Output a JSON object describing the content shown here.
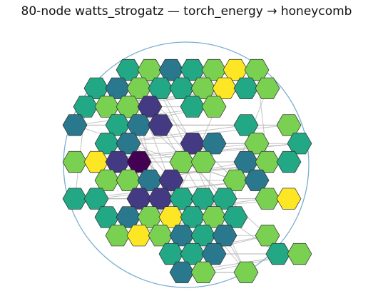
{
  "title": "80-node watts_strogatz — torch_energy → honeycomb",
  "colors": {
    "boundary": "#78aed0",
    "edge": "#b0b0b0",
    "hex_stroke": "#2b2b2b",
    "c0": "#440154",
    "c1": "#443a83",
    "c2": "#2a788e",
    "c3": "#22a884",
    "c4": "#7ad151",
    "c5": "#fde725"
  },
  "honeycomb": {
    "rows": [
      {
        "r": 0,
        "cells": [
          [
            0,
            3
          ],
          [
            1,
            4
          ],
          [
            2,
            2
          ],
          [
            3,
            3
          ],
          [
            4,
            4
          ],
          [
            5,
            5
          ],
          [
            6,
            4
          ]
        ]
      },
      {
        "r": 1,
        "cells": [
          [
            0,
            3
          ],
          [
            1,
            2
          ],
          [
            2,
            4
          ],
          [
            3,
            3
          ],
          [
            4,
            3
          ],
          [
            5,
            4
          ],
          [
            6,
            5
          ],
          [
            7,
            3
          ],
          [
            8,
            4
          ]
        ]
      },
      {
        "r": 2,
        "cells": [
          [
            0,
            3
          ],
          [
            1,
            4
          ],
          [
            2,
            4
          ],
          [
            3,
            1
          ],
          [
            5,
            3
          ],
          [
            6,
            4
          ]
        ]
      },
      {
        "r": 3,
        "cells": [
          [
            0,
            2
          ],
          [
            2,
            3
          ],
          [
            3,
            2
          ],
          [
            4,
            1
          ],
          [
            8,
            3
          ],
          [
            10,
            4
          ]
        ]
      },
      {
        "r": 4,
        "cells": [
          [
            1,
            3
          ],
          [
            2,
            2
          ],
          [
            5,
            1
          ],
          [
            6,
            2
          ],
          [
            8,
            4
          ],
          [
            10,
            3
          ]
        ]
      },
      {
        "r": 5,
        "cells": [
          [
            0,
            4
          ],
          [
            1,
            5
          ],
          [
            2,
            1
          ],
          [
            3,
            0
          ],
          [
            5,
            4
          ],
          [
            6,
            4
          ],
          [
            8,
            2
          ],
          [
            9,
            4
          ],
          [
            10,
            3
          ]
        ]
      },
      {
        "r": 6,
        "cells": [
          [
            1,
            4
          ],
          [
            2,
            4
          ],
          [
            3,
            2
          ],
          [
            4,
            1
          ],
          [
            7,
            4
          ],
          [
            8,
            2
          ]
        ]
      },
      {
        "r": 7,
        "cells": [
          [
            0,
            3
          ],
          [
            1,
            3
          ],
          [
            3,
            1
          ],
          [
            4,
            1
          ],
          [
            5,
            3
          ],
          [
            6,
            3
          ],
          [
            7,
            3
          ],
          [
            9,
            4
          ],
          [
            10,
            5
          ]
        ]
      },
      {
        "r": 8,
        "cells": [
          [
            1,
            3
          ],
          [
            2,
            2
          ],
          [
            3,
            4
          ],
          [
            4,
            5
          ],
          [
            5,
            3
          ],
          [
            6,
            4
          ],
          [
            7,
            3
          ]
        ]
      },
      {
        "r": 9,
        "cells": [
          [
            1,
            4
          ],
          [
            2,
            5
          ],
          [
            3,
            4
          ],
          [
            4,
            2
          ],
          [
            5,
            3
          ],
          [
            6,
            2
          ],
          [
            8,
            4
          ]
        ]
      },
      {
        "r": 10,
        "cells": [
          [
            2,
            3
          ],
          [
            3,
            3
          ],
          [
            4,
            2
          ],
          [
            7,
            3
          ],
          [
            8,
            4
          ]
        ]
      },
      {
        "r": 11,
        "cells": [
          [
            2,
            2
          ],
          [
            3,
            4
          ],
          [
            5,
            4
          ]
        ]
      }
    ]
  }
}
